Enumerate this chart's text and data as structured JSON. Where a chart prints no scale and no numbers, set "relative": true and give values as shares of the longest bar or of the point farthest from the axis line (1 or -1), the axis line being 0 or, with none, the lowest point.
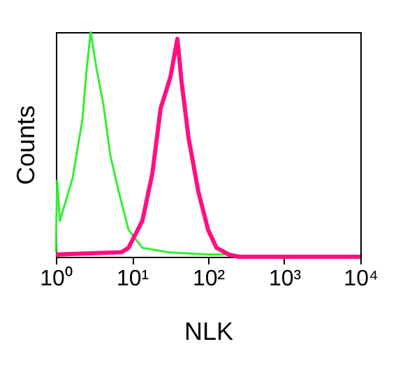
{
  "chart_data": {
    "type": "line",
    "xlabel": "NLK",
    "ylabel": "Counts",
    "relative": true,
    "log": "x",
    "grid": false,
    "marker": "none",
    "line_style": "solid",
    "xlim": [
      1,
      10000
    ],
    "xticks": [
      {
        "value": 1,
        "label": "10⁰"
      },
      {
        "value": 10,
        "label": "10¹"
      },
      {
        "value": 100,
        "label": "10²"
      },
      {
        "value": 1000,
        "label": "10³"
      },
      {
        "value": 10000,
        "label": "10⁴"
      }
    ],
    "series": [
      {
        "color": "#33ee33",
        "x": [
          1,
          1.04,
          1.13,
          1.66,
          2.23,
          2.53,
          2.87,
          3.41,
          4.2,
          5.2,
          6.7,
          9.0,
          13.7,
          30,
          100,
          173,
          400,
          10000
        ],
        "values": [
          0.02,
          0.34,
          0.16,
          0.35,
          0.61,
          0.83,
          1.0,
          0.84,
          0.68,
          0.45,
          0.29,
          0.12,
          0.04,
          0.02,
          0.01,
          0.01,
          0,
          0
        ]
      },
      {
        "color": "#ff0f7f",
        "x": [
          1,
          7.3,
          9.0,
          13.7,
          18.5,
          23.8,
          32,
          39.5,
          44.8,
          55.3,
          74.4,
          100,
          129,
          188,
          250,
          10000
        ],
        "values": [
          0.01,
          0.02,
          0.04,
          0.16,
          0.37,
          0.66,
          0.8,
          0.97,
          0.78,
          0.53,
          0.29,
          0.12,
          0.04,
          0.01,
          0,
          0
        ]
      }
    ]
  }
}
